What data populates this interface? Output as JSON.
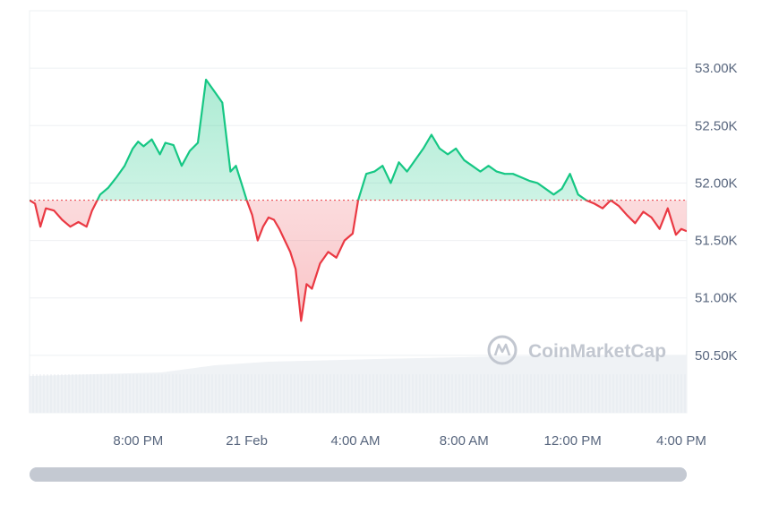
{
  "chart_data": {
    "type": "area",
    "baseline": 51850,
    "ylim": [
      50000,
      53500
    ],
    "y_ticks": [
      50500,
      51000,
      51500,
      52000,
      52500,
      53000
    ],
    "y_tick_labels": [
      "50.50K",
      "51.00K",
      "51.50K",
      "52.00K",
      "52.50K",
      "53.00K"
    ],
    "x_ticks": [
      4,
      8,
      12,
      16,
      20,
      24
    ],
    "x_tick_labels": [
      "8:00 PM",
      "21 Feb",
      "4:00 AM",
      "8:00 AM",
      "12:00 PM",
      "4:00 PM"
    ],
    "x_unit_note": "",
    "series": [
      {
        "x": [
          0,
          0.2,
          0.4,
          0.6,
          0.9,
          1.2,
          1.5,
          1.8,
          2.1,
          2.3,
          2.6,
          2.9,
          3.2,
          3.5,
          3.8,
          4.0,
          4.2,
          4.5,
          4.8,
          5.0,
          5.3,
          5.6,
          5.9,
          6.2,
          6.5,
          6.8,
          7.1,
          7.4,
          7.6,
          7.8,
          8.0,
          8.2,
          8.4,
          8.6,
          8.8,
          9.0,
          9.2,
          9.4,
          9.6,
          9.8,
          10.0,
          10.2,
          10.4,
          10.7,
          11.0,
          11.3,
          11.6,
          11.9,
          12.1,
          12.4,
          12.7,
          13.0,
          13.3,
          13.6,
          13.9,
          14.2,
          14.5,
          14.8,
          15.1,
          15.4,
          15.7,
          16.0,
          16.3,
          16.6,
          16.9,
          17.2,
          17.5,
          17.8,
          18.1,
          18.4,
          18.7,
          19.0,
          19.3,
          19.6,
          19.9,
          20.2,
          20.5,
          20.8,
          21.1,
          21.4,
          21.7,
          22.0,
          22.3,
          22.6,
          22.9,
          23.2,
          23.5,
          23.8,
          24.0,
          24.2
        ],
        "y": [
          51850,
          51820,
          51620,
          51780,
          51760,
          51680,
          51620,
          51660,
          51620,
          51760,
          51900,
          51960,
          52050,
          52150,
          52300,
          52360,
          52320,
          52380,
          52250,
          52350,
          52330,
          52150,
          52280,
          52350,
          52900,
          52800,
          52700,
          52100,
          52150,
          52000,
          51850,
          51720,
          51500,
          51620,
          51700,
          51680,
          51600,
          51500,
          51400,
          51250,
          50800,
          51120,
          51080,
          51300,
          51400,
          51350,
          51500,
          51560,
          51850,
          52080,
          52100,
          52150,
          52000,
          52180,
          52100,
          52200,
          52300,
          52420,
          52300,
          52250,
          52300,
          52200,
          52150,
          52100,
          52150,
          52100,
          52080,
          52080,
          52050,
          52020,
          52000,
          51950,
          51900,
          51950,
          52080,
          51900,
          51850,
          51820,
          51780,
          51850,
          51800,
          51720,
          51650,
          51750,
          51700,
          51600,
          51780,
          51550,
          51600,
          51580
        ]
      }
    ]
  }
}
